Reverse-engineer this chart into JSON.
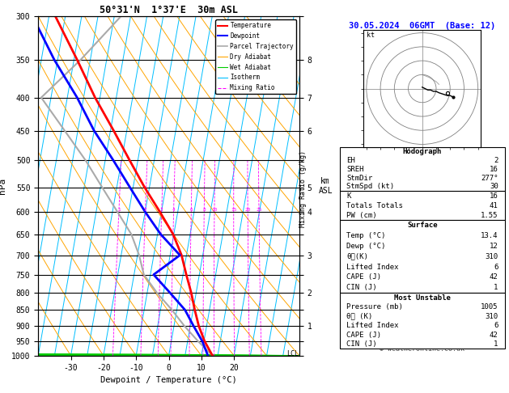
{
  "title_left": "50°31'N  1°37'E  30m ASL",
  "title_right": "30.05.2024  06GMT  (Base: 12)",
  "xlabel": "Dewpoint / Temperature (°C)",
  "ylabel_left": "hPa",
  "background_color": "#ffffff",
  "isotherm_color": "#00bfff",
  "dryadiabat_color": "#ffa500",
  "wetadiabat_color": "#00cc00",
  "mixratio_color": "#ff00ff",
  "temp_color": "#ff0000",
  "dewp_color": "#0000ff",
  "parcel_color": "#aaaaaa",
  "temp_data": [
    [
      1000,
      13.4
    ],
    [
      950,
      10.2
    ],
    [
      900,
      7.6
    ],
    [
      850,
      5.5
    ],
    [
      800,
      3.5
    ],
    [
      750,
      1.0
    ],
    [
      700,
      -1.5
    ],
    [
      650,
      -5.2
    ],
    [
      600,
      -10.5
    ],
    [
      550,
      -16.5
    ],
    [
      500,
      -22.5
    ],
    [
      450,
      -29.0
    ],
    [
      400,
      -36.5
    ],
    [
      350,
      -44.0
    ],
    [
      300,
      -53.0
    ]
  ],
  "dewp_data": [
    [
      1000,
      12.0
    ],
    [
      950,
      9.5
    ],
    [
      900,
      6.0
    ],
    [
      850,
      2.5
    ],
    [
      800,
      -3.0
    ],
    [
      750,
      -9.0
    ],
    [
      700,
      -2.0
    ],
    [
      650,
      -9.0
    ],
    [
      600,
      -15.0
    ],
    [
      550,
      -21.0
    ],
    [
      500,
      -27.5
    ],
    [
      450,
      -35.0
    ],
    [
      400,
      -42.0
    ],
    [
      350,
      -51.0
    ],
    [
      300,
      -60.0
    ]
  ],
  "parcel_data": [
    [
      1000,
      13.4
    ],
    [
      950,
      8.2
    ],
    [
      900,
      3.2
    ],
    [
      850,
      -1.5
    ],
    [
      800,
      -7.0
    ],
    [
      750,
      -12.0
    ],
    [
      700,
      -14.5
    ],
    [
      650,
      -18.0
    ],
    [
      600,
      -23.5
    ],
    [
      550,
      -29.5
    ],
    [
      500,
      -36.0
    ],
    [
      450,
      -44.0
    ],
    [
      400,
      -53.0
    ],
    [
      350,
      -43.0
    ],
    [
      300,
      -33.0
    ]
  ],
  "pressure_ticks": [
    300,
    350,
    400,
    450,
    500,
    550,
    600,
    650,
    700,
    750,
    800,
    850,
    900,
    950,
    1000
  ],
  "km_ticks_p": [
    300,
    350,
    400,
    450,
    500,
    550,
    600,
    650,
    700,
    750,
    800,
    850,
    900,
    950,
    1000
  ],
  "km_ticks_v": [
    "",
    "8",
    "7",
    "6",
    "",
    "5",
    "4",
    "",
    "3",
    "",
    "2",
    "",
    "1",
    "",
    ""
  ],
  "mixing_ratio_lines": [
    1,
    2,
    3,
    4,
    6,
    8,
    10,
    15,
    20,
    25
  ],
  "lcl_label": "LCL",
  "lcl_pressure": 992,
  "info_K": 16,
  "info_TT": 41,
  "info_PW": "1.55",
  "surface_temp": "13.4",
  "surface_dewp": "12",
  "surface_theta_e": "310",
  "surface_lifted": "6",
  "surface_cape": "42",
  "surface_cin": "1",
  "mu_pressure": "1005",
  "mu_theta_e": "310",
  "mu_lifted": "6",
  "mu_cape": "42",
  "mu_cin": "1",
  "hodo_EH": "2",
  "hodo_SREH": "16",
  "hodo_StmDir": "277°",
  "hodo_StmSpd": "30",
  "copyright": "© weatheronline.co.uk",
  "pmin": 300,
  "pmax": 1000,
  "tmin": -40,
  "tmax": 40,
  "skew": 35.0
}
